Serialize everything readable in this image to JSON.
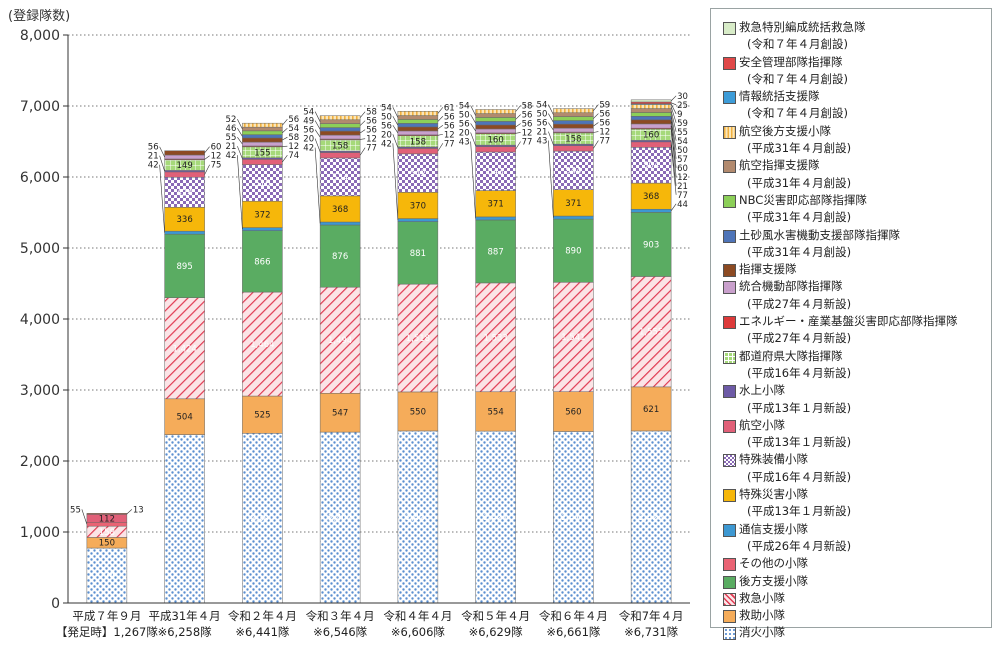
{
  "chart_data": {
    "type": "bar",
    "stacked": true,
    "ylabel": "(登録隊数)",
    "ylim": [
      0,
      8000
    ],
    "yticks": [
      "0",
      "1,000",
      "2,000",
      "3,000",
      "4,000",
      "5,000",
      "6,000",
      "7,000",
      "8,000"
    ],
    "grid": "horizontal-dotted",
    "legend_position": "right",
    "categories": [
      {
        "line1": "平成７年９月",
        "line2": "【発足時】1,267隊",
        "total": 1267
      },
      {
        "line1": "平成31年４月",
        "line2": "※6,258隊",
        "total": 6258
      },
      {
        "line1": "令和２年４月",
        "line2": "※6,441隊",
        "total": 6441
      },
      {
        "line1": "令和３年４月",
        "line2": "※6,546隊",
        "total": 6546
      },
      {
        "line1": "令和４年４月",
        "line2": "※6,606隊",
        "total": 6606
      },
      {
        "line1": "令和５年４月",
        "line2": "※6,629隊",
        "total": 6629
      },
      {
        "line1": "令和６年４月",
        "line2": "※6,661隊",
        "total": 6661
      },
      {
        "line1": "令和7年４月",
        "line2": "※6,731隊",
        "total": 6731
      }
    ],
    "series": [
      {
        "name": "消火小隊",
        "color": "#b8d4ee",
        "pattern": "dots",
        "values": [
          774,
          2372,
          2390,
          2407,
          2423,
          2421,
          2416,
          2423
        ],
        "labels": [
          "774",
          "2,372",
          "2,390",
          "2,407",
          "2,423",
          "2,421",
          "2,416",
          "2,423"
        ]
      },
      {
        "name": "救助小隊",
        "color": "#f5ac5a",
        "values": [
          150,
          504,
          525,
          547,
          550,
          554,
          560,
          621
        ],
        "labels": [
          "150",
          "504",
          "525",
          "547",
          "550",
          "554",
          "560",
          "621"
        ]
      },
      {
        "name": "救急小隊",
        "color": "#e03a52",
        "pattern": "hatch",
        "values": [
          158,
          1424,
          1464,
          1494,
          1518,
          1533,
          1541,
          1555
        ],
        "labels": [
          "158",
          "1,424",
          "1,464",
          "1,494",
          "1,518",
          "1,533",
          "1,541",
          "1,555"
        ]
      },
      {
        "name": "後方支援小隊",
        "color": "#5aac62",
        "values": [
          0,
          895,
          866,
          876,
          881,
          887,
          890,
          903
        ],
        "labels": [
          "",
          "895",
          "866",
          "876",
          "881",
          "887",
          "890",
          "903"
        ]
      },
      {
        "name": "その他の小隊",
        "color": "#ea6374",
        "values": [
          55,
          0,
          0,
          0,
          0,
          0,
          0,
          0
        ],
        "labels": [
          "55",
          "",
          "",
          "",
          "",
          "",
          "",
          ""
        ]
      },
      {
        "name": "通信支援小隊",
        "color": "#3d98d2",
        "sub": "(平成26年４月新設)",
        "values": [
          0,
          42,
          42,
          42,
          42,
          43,
          43,
          44
        ],
        "labels": [
          "",
          "42",
          "42",
          "42",
          "42",
          "43",
          "43",
          "44"
        ]
      },
      {
        "name": "特殊災害小隊",
        "color": "#f6b70a",
        "sub": "(平成13年１月新設)",
        "values": [
          0,
          336,
          372,
          368,
          370,
          371,
          371,
          368
        ],
        "labels": [
          "",
          "336",
          "372",
          "368",
          "370",
          "371",
          "371",
          "368"
        ]
      },
      {
        "name": "特殊装備小隊",
        "color": "#6a4a96",
        "pattern": "check",
        "sub": "(平成16年４月新設)",
        "values": [
          0,
          424,
          516,
          534,
          542,
          543,
          544,
          504
        ],
        "labels": [
          "",
          "424",
          "516",
          "534",
          "542",
          "543",
          "544",
          "504"
        ]
      },
      {
        "name": "航空小隊",
        "color": "#e16078",
        "sub": "(平成13年１月新設)",
        "values": [
          112,
          75,
          74,
          77,
          77,
          77,
          77,
          77
        ],
        "labels": [
          "112",
          "75",
          "74",
          "77",
          "77",
          "77",
          "77",
          "77"
        ]
      },
      {
        "name": "水上小隊",
        "color": "#6d5aa6",
        "sub": "(平成13年１月新設)",
        "values": [
          0,
          21,
          21,
          20,
          20,
          20,
          21,
          21
        ],
        "labels": [
          "",
          "21",
          "21",
          "20",
          "20",
          "20",
          "21",
          "21"
        ]
      },
      {
        "name": "都道府県大隊指揮隊",
        "color": "#8cca60",
        "pattern": "grid",
        "sub": "(平成16年４月新設)",
        "values": [
          0,
          149,
          155,
          158,
          158,
          160,
          158,
          160
        ],
        "labels": [
          "",
          "149",
          "155",
          "158",
          "158",
          "160",
          "158",
          "160"
        ]
      },
      {
        "name": "エネルギー・産業基盤災害即応部隊指揮隊",
        "color": "#dd3a3a",
        "sub": "(平成27年４月新設)",
        "values": [
          0,
          12,
          12,
          12,
          12,
          12,
          12,
          12
        ],
        "labels": [
          "",
          "12",
          "12",
          "12",
          "12",
          "12",
          "12",
          "12"
        ]
      },
      {
        "name": "統合機動部隊指揮隊",
        "color": "#c9a0cc",
        "sub": "(平成27年４月新設)",
        "values": [
          0,
          56,
          55,
          56,
          56,
          56,
          56,
          60
        ],
        "labels": [
          "",
          "56",
          "55",
          "56",
          "56",
          "56",
          "56",
          "60"
        ]
      },
      {
        "name": "指揮支援隊",
        "color": "#8c4a22",
        "values": [
          13,
          60,
          58,
          56,
          56,
          56,
          56,
          57
        ],
        "labels": [
          "13",
          "60",
          "58",
          "56",
          "56",
          "56",
          "56",
          "57"
        ]
      },
      {
        "name": "土砂風水害機動支援部隊指揮隊",
        "color": "#4e74b8",
        "sub": "(平成31年４月創設)",
        "values": [
          0,
          0,
          46,
          49,
          50,
          50,
          50,
          50
        ],
        "labels": [
          "",
          "",
          "46",
          "49",
          "50",
          "50",
          "50",
          "50"
        ]
      },
      {
        "name": "NBC災害即応部隊指揮隊",
        "color": "#8ccf58",
        "sub": "(平成31年４月創設)",
        "values": [
          0,
          0,
          54,
          56,
          56,
          56,
          56,
          54
        ],
        "labels": [
          "",
          "",
          "54",
          "56",
          "56",
          "56",
          "56",
          "54"
        ]
      },
      {
        "name": "航空指揮支援隊",
        "color": "#b28a6e",
        "sub": "(平成31年４月創設)",
        "values": [
          0,
          0,
          52,
          54,
          54,
          54,
          54,
          55
        ],
        "labels": [
          "",
          "",
          "52",
          "54",
          "54",
          "54",
          "54",
          "55"
        ]
      },
      {
        "name": "航空後方支援小隊",
        "color": "#f4cf8a",
        "pattern": "vstripe",
        "sub": "(平成31年４月創設)",
        "values": [
          0,
          0,
          56,
          58,
          61,
          58,
          59,
          59
        ],
        "labels": [
          "",
          "",
          "56",
          "58",
          "61",
          "58",
          "59",
          "59"
        ]
      },
      {
        "name": "情報統括支援隊",
        "color": "#3d9cd8",
        "sub": "(令和７年４月創設)",
        "values": [
          0,
          0,
          0,
          0,
          0,
          0,
          0,
          9
        ],
        "labels": [
          "",
          "",
          "",
          "",
          "",
          "",
          "",
          "9"
        ]
      },
      {
        "name": "安全管理部隊指揮隊",
        "color": "#e04848",
        "sub": "(令和７年４月創設)",
        "values": [
          0,
          0,
          0,
          0,
          0,
          0,
          0,
          25
        ],
        "labels": [
          "",
          "",
          "",
          "",
          "",
          "",
          "",
          "25"
        ]
      },
      {
        "name": "救急特別編成統括救急隊",
        "color": "#d8ecc8",
        "sub": "(令和７年４月創設)",
        "values": [
          0,
          0,
          0,
          0,
          0,
          0,
          0,
          30
        ],
        "labels": [
          "",
          "",
          "",
          "",
          "",
          "",
          "",
          "30"
        ]
      }
    ]
  }
}
